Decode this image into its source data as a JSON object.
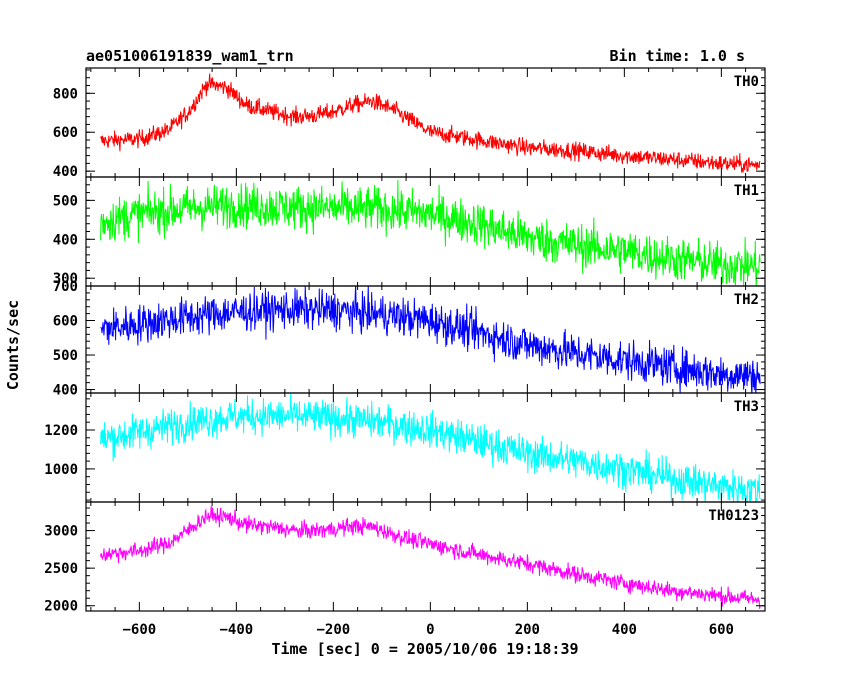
{
  "chart_data": {
    "type": "line",
    "title": "ae051006191839_wam1_trn",
    "subtitle": "Bin time: 1.0 s",
    "xlabel": "Time [sec] 0 = 2005/10/06 19:18:39",
    "ylabel": "Counts/sec",
    "xlim": [
      -710,
      690
    ],
    "x_ticks": [
      -600,
      -400,
      -200,
      0,
      200,
      400,
      600
    ],
    "x_range_data": [
      -680,
      680
    ],
    "panels": [
      {
        "name": "TH0",
        "color": "#ff0000",
        "ylim": [
          370,
          930
        ],
        "y_ticks": [
          400,
          600,
          800
        ],
        "noise": 22,
        "trend_x": [
          -680,
          -600,
          -540,
          -500,
          -460,
          -420,
          -380,
          -320,
          -280,
          -240,
          -200,
          -160,
          -120,
          -80,
          -40,
          0,
          100,
          200,
          300,
          400,
          500,
          600,
          680
        ],
        "trend_y": [
          555,
          565,
          610,
          700,
          850,
          830,
          740,
          700,
          680,
          685,
          705,
          740,
          760,
          720,
          660,
          600,
          560,
          520,
          505,
          480,
          460,
          440,
          430
        ]
      },
      {
        "name": "TH1",
        "color": "#00ff00",
        "ylim": [
          280,
          560
        ],
        "y_ticks": [
          300,
          400,
          500
        ],
        "noise": 28,
        "trend_x": [
          -680,
          -600,
          -500,
          -400,
          -300,
          -200,
          -100,
          0,
          100,
          200,
          300,
          400,
          500,
          600,
          680
        ],
        "trend_y": [
          445,
          465,
          480,
          488,
          482,
          480,
          478,
          465,
          440,
          405,
          385,
          370,
          350,
          335,
          330
        ]
      },
      {
        "name": "TH2",
        "color": "#0000ff",
        "ylim": [
          390,
          700
        ],
        "y_ticks": [
          400,
          500,
          600,
          700
        ],
        "noise": 28,
        "trend_x": [
          -680,
          -600,
          -500,
          -400,
          -300,
          -200,
          -100,
          0,
          100,
          200,
          300,
          400,
          500,
          600,
          680
        ],
        "trend_y": [
          575,
          590,
          610,
          625,
          632,
          630,
          618,
          600,
          565,
          530,
          505,
          485,
          465,
          445,
          440
        ]
      },
      {
        "name": "TH3",
        "color": "#00ffff",
        "ylim": [
          830,
          1390
        ],
        "y_ticks": [
          1000,
          1200
        ],
        "noise": 45,
        "trend_x": [
          -680,
          -600,
          -500,
          -400,
          -300,
          -200,
          -100,
          0,
          100,
          200,
          300,
          400,
          500,
          600,
          680
        ],
        "trend_y": [
          1150,
          1190,
          1240,
          1270,
          1272,
          1262,
          1240,
          1200,
          1140,
          1080,
          1040,
          1000,
          950,
          910,
          890
        ]
      },
      {
        "name": "TH0123",
        "color": "#ff00ff",
        "ylim": [
          1930,
          3380
        ],
        "y_ticks": [
          2000,
          2500,
          3000
        ],
        "noise": 55,
        "trend_x": [
          -680,
          -600,
          -540,
          -500,
          -460,
          -420,
          -380,
          -320,
          -280,
          -240,
          -200,
          -160,
          -120,
          -80,
          -40,
          0,
          100,
          200,
          300,
          400,
          500,
          600,
          680
        ],
        "trend_y": [
          2680,
          2730,
          2830,
          3000,
          3200,
          3180,
          3080,
          3040,
          3000,
          3000,
          3020,
          3060,
          3050,
          2960,
          2880,
          2820,
          2680,
          2560,
          2420,
          2300,
          2200,
          2130,
          2080
        ]
      }
    ]
  }
}
